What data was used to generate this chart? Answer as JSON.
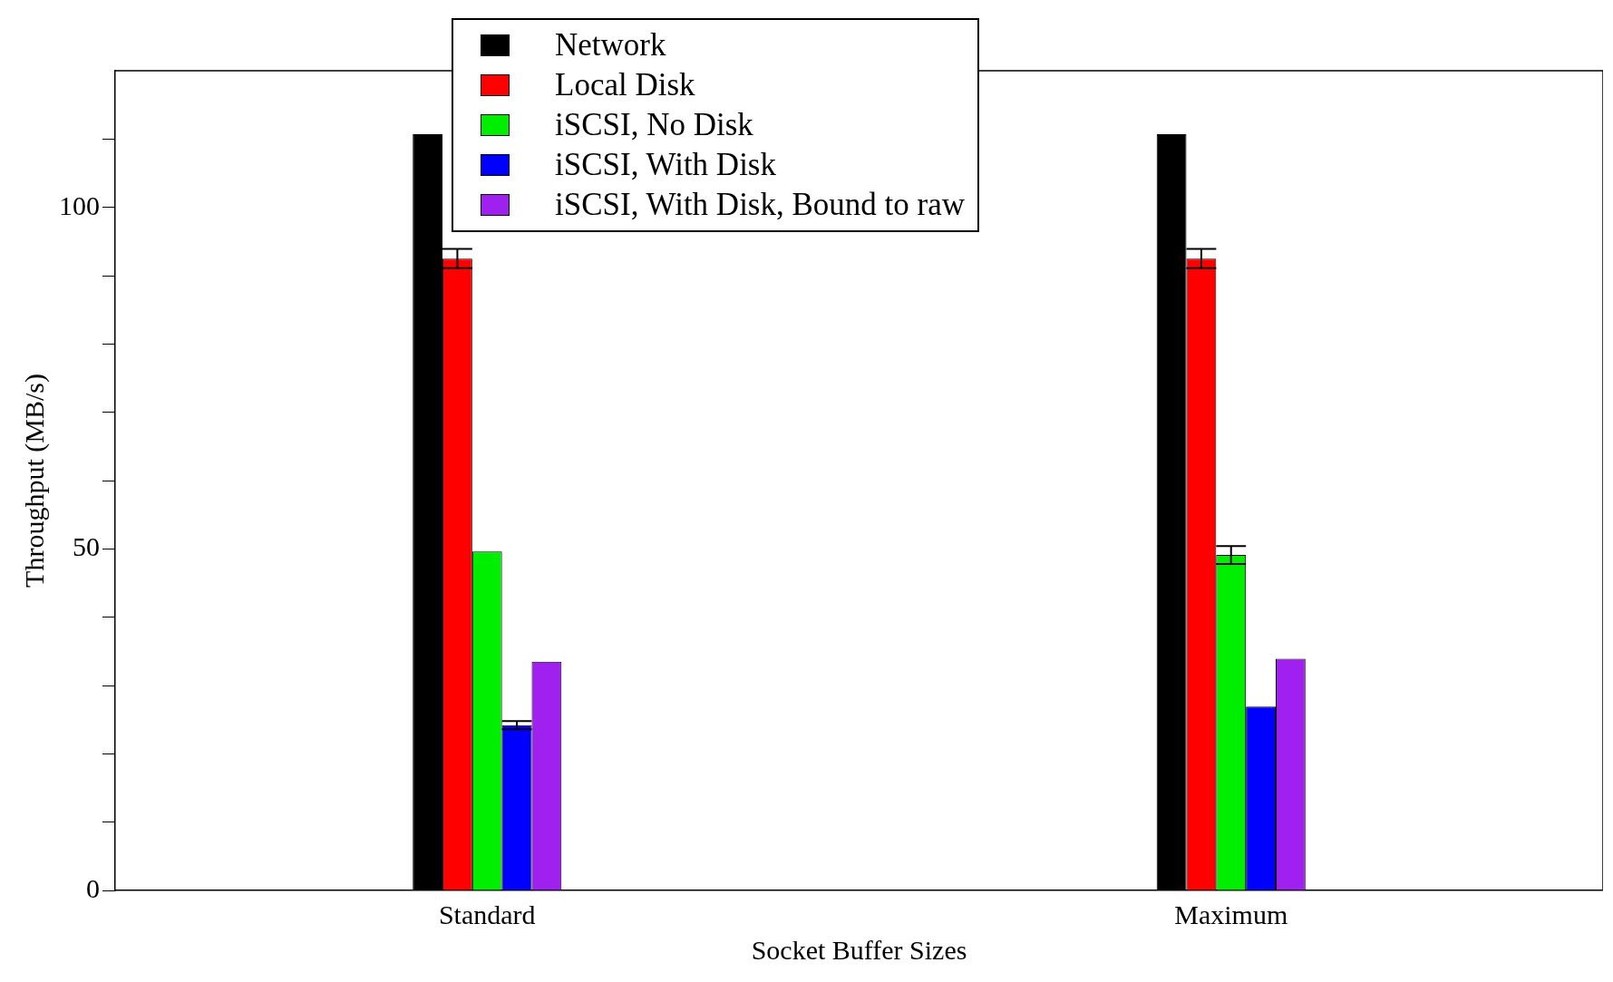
{
  "chart_data": {
    "type": "bar",
    "xlabel": "Socket Buffer Sizes",
    "ylabel": "Throughput (MB/s)",
    "categories": [
      "Standard",
      "Maximum"
    ],
    "series": [
      {
        "name": "Network",
        "color": "#000000",
        "values": [
          110.7,
          110.7
        ]
      },
      {
        "name": "Local Disk",
        "color": "#ff0000",
        "values": [
          92.5,
          92.5
        ],
        "errors": [
          1.4,
          1.4
        ]
      },
      {
        "name": "iSCSI, No Disk",
        "color": "#00ee00",
        "values": [
          49.6,
          49.1
        ],
        "errors": [
          null,
          1.3
        ]
      },
      {
        "name": "iSCSI, With Disk",
        "color": "#0000ff",
        "values": [
          24.2,
          26.9
        ],
        "errors": [
          0.6,
          null
        ]
      },
      {
        "name": "iSCSI, With Disk, Bound to raw",
        "color": "#a020f0",
        "values": [
          33.5,
          33.9
        ]
      }
    ],
    "ylim": [
      0,
      120
    ],
    "yticks": [
      0,
      {
        "value": 10,
        "label": null
      },
      {
        "value": 20,
        "label": null
      },
      {
        "value": 30,
        "label": null
      },
      {
        "value": 40,
        "label": null
      },
      50,
      {
        "value": 60,
        "label": null
      },
      {
        "value": 70,
        "label": null
      },
      {
        "value": 80,
        "label": null
      },
      {
        "value": 90,
        "label": null
      },
      100,
      {
        "value": 110,
        "label": null
      }
    ],
    "grid": false,
    "legend": "top"
  }
}
